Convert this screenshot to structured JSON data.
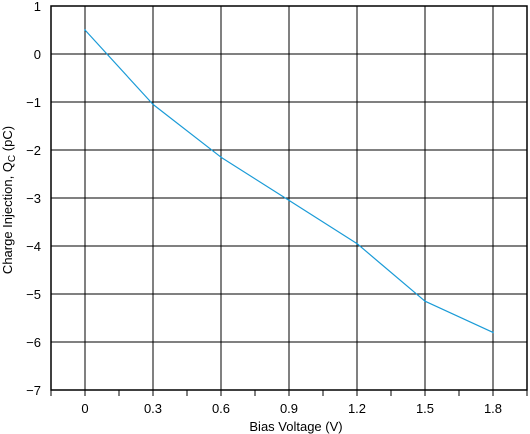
{
  "chart_data": {
    "type": "line",
    "title": "",
    "xlabel": "Bias Voltage (V)",
    "ylabel": {
      "prefix": "Charge Injection, Q",
      "subscript": "C",
      "suffix": " (pC)"
    },
    "x_ticks": [
      0,
      0.3,
      0.6,
      0.9,
      1.2,
      1.5,
      1.8
    ],
    "x_tick_labels": [
      "0",
      "0.3",
      "0.6",
      "0.9",
      "1.2",
      "1.5",
      "1.8"
    ],
    "y_ticks": [
      1,
      0,
      -1,
      -2,
      -3,
      -4,
      -5,
      -6,
      -7
    ],
    "y_tick_labels": [
      "1",
      "0",
      "−1",
      "−2",
      "−3",
      "−4",
      "−5",
      "−6",
      "−7"
    ],
    "xlim": [
      -0.15,
      1.95
    ],
    "ylim": [
      -7,
      1
    ],
    "grid": true,
    "legend": "none",
    "series": [
      {
        "color": "#1a9bd7",
        "x": [
          0,
          0.3,
          0.6,
          0.9,
          1.2,
          1.5,
          1.8
        ],
        "y": [
          0.5,
          -1.05,
          -2.15,
          -3.05,
          -3.95,
          -5.15,
          -5.8
        ]
      }
    ]
  }
}
